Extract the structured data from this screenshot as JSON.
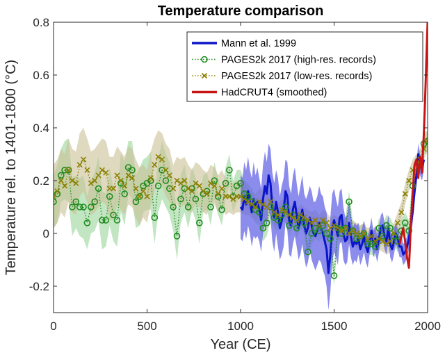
{
  "chart_data": {
    "type": "line",
    "title": "Temperature comparison",
    "xlabel": "Year (CE)",
    "ylabel": "Temperature rel. to 1401-1800 (°C)",
    "xlim": [
      0,
      2000
    ],
    "ylim": [
      -0.3,
      0.8
    ],
    "xticks": [
      0,
      500,
      1000,
      1500,
      2000
    ],
    "yticks": [
      -0.2,
      0,
      0.2,
      0.4,
      0.6,
      0.8
    ],
    "xtick_labels": [
      "0",
      "500",
      "1000",
      "1500",
      "2000"
    ],
    "ytick_labels": [
      "-0.2",
      "0",
      "0.2",
      "0.4",
      "0.6",
      "0.8"
    ],
    "grid": false,
    "legend_position": "top-right",
    "colors": {
      "mann": "#0a14c8",
      "mann_band": "#6466e6",
      "pages_high": "#1e8c1e",
      "pages_high_band": "#8fd08f",
      "pages_low": "#8c8000",
      "pages_low_band": "#c8c094",
      "hadcrut": "#c81414"
    },
    "series": [
      {
        "name": "Mann et al. 1999",
        "key": "mann",
        "style": "solid",
        "x": [
          1000,
          1010,
          1020,
          1030,
          1040,
          1050,
          1060,
          1070,
          1080,
          1090,
          1100,
          1110,
          1120,
          1130,
          1140,
          1150,
          1160,
          1170,
          1180,
          1190,
          1200,
          1210,
          1220,
          1230,
          1240,
          1250,
          1260,
          1270,
          1280,
          1290,
          1300,
          1310,
          1320,
          1330,
          1340,
          1350,
          1360,
          1370,
          1380,
          1390,
          1400,
          1410,
          1420,
          1430,
          1440,
          1450,
          1460,
          1470,
          1480,
          1490,
          1500,
          1510,
          1520,
          1530,
          1540,
          1550,
          1560,
          1570,
          1580,
          1590,
          1600,
          1610,
          1620,
          1630,
          1640,
          1650,
          1660,
          1670,
          1680,
          1690,
          1700,
          1710,
          1720,
          1730,
          1740,
          1750,
          1760,
          1770,
          1780,
          1790,
          1800,
          1810,
          1820,
          1830,
          1840,
          1850,
          1860,
          1870,
          1880,
          1890,
          1900,
          1910,
          1920,
          1930,
          1940,
          1950,
          1960,
          1970,
          1980
        ],
        "y": [
          0.1,
          0.09,
          0.14,
          0.11,
          0.16,
          0.12,
          0.08,
          0.13,
          0.1,
          0.12,
          0.09,
          0.05,
          0.13,
          0.18,
          0.15,
          0.22,
          0.19,
          0.1,
          0.06,
          0.12,
          0.08,
          0.02,
          0.05,
          0.08,
          0.16,
          0.14,
          0.05,
          0.03,
          0.09,
          0.12,
          0.07,
          0.02,
          0.05,
          0.09,
          0.03,
          0.0,
          0.02,
          0.06,
          0.03,
          0.0,
          -0.01,
          0.01,
          0.04,
          0.02,
          0.0,
          -0.03,
          -0.06,
          -0.15,
          -0.08,
          0.02,
          0.05,
          0.02,
          -0.01,
          0.06,
          0.07,
          0.0,
          -0.03,
          -0.02,
          0.04,
          -0.01,
          -0.05,
          -0.03,
          -0.04,
          -0.02,
          -0.06,
          -0.04,
          -0.01,
          -0.05,
          -0.07,
          -0.03,
          0.01,
          -0.04,
          -0.02,
          -0.06,
          -0.02,
          0.02,
          0.03,
          -0.01,
          -0.03,
          0.02,
          -0.04,
          -0.06,
          -0.03,
          0.0,
          -0.02,
          -0.05,
          -0.05,
          -0.08,
          -0.07,
          -0.05,
          -0.02,
          0.03,
          0.08,
          0.16,
          0.22,
          0.3,
          0.26,
          0.24,
          0.28
        ],
        "band": [
          0.12,
          0.12,
          0.13,
          0.13,
          0.13,
          0.12,
          0.13,
          0.14,
          0.12,
          0.13,
          0.12,
          0.12,
          0.13,
          0.13,
          0.12,
          0.12,
          0.13,
          0.13,
          0.13,
          0.12,
          0.13,
          0.12,
          0.13,
          0.13,
          0.12,
          0.13,
          0.13,
          0.12,
          0.13,
          0.13,
          0.12,
          0.12,
          0.13,
          0.13,
          0.12,
          0.13,
          0.13,
          0.12,
          0.13,
          0.12,
          0.13,
          0.13,
          0.14,
          0.13,
          0.14,
          0.13,
          0.14,
          0.14,
          0.14,
          0.13,
          0.12,
          0.11,
          0.11,
          0.1,
          0.1,
          0.1,
          0.09,
          0.09,
          0.08,
          0.08,
          0.07,
          0.07,
          0.07,
          0.06,
          0.06,
          0.06,
          0.06,
          0.06,
          0.06,
          0.05,
          0.05,
          0.05,
          0.05,
          0.05,
          0.05,
          0.05,
          0.05,
          0.05,
          0.05,
          0.05,
          0.05,
          0.05,
          0.05,
          0.04,
          0.04,
          0.04,
          0.04,
          0.04,
          0.04,
          0.04,
          0.04,
          0.04,
          0.04,
          0.04,
          0.04,
          0.04,
          0.04,
          0.04,
          0.04
        ]
      },
      {
        "name": "PAGES2k 2017 (high-res. records)",
        "key": "pages_high",
        "style": "dotted-circle",
        "x": [
          0,
          20,
          40,
          60,
          80,
          100,
          120,
          140,
          160,
          180,
          200,
          220,
          240,
          260,
          280,
          300,
          320,
          340,
          360,
          380,
          400,
          420,
          440,
          460,
          480,
          500,
          520,
          540,
          560,
          580,
          600,
          620,
          640,
          660,
          680,
          700,
          720,
          740,
          760,
          780,
          800,
          820,
          840,
          860,
          880,
          900,
          920,
          940,
          960,
          980,
          1000,
          1020,
          1040,
          1060,
          1080,
          1100,
          1120,
          1140,
          1160,
          1180,
          1200,
          1220,
          1240,
          1260,
          1280,
          1300,
          1320,
          1340,
          1360,
          1380,
          1400,
          1420,
          1440,
          1460,
          1480,
          1500,
          1520,
          1540,
          1560,
          1580,
          1600,
          1620,
          1640,
          1660,
          1680,
          1700,
          1720,
          1740,
          1760,
          1780,
          1800,
          1820,
          1840,
          1860,
          1880,
          1900,
          1920,
          1940,
          1960,
          1980,
          2000
        ],
        "y": [
          0.12,
          0.15,
          0.22,
          0.24,
          0.24,
          0.1,
          0.12,
          0.1,
          0.1,
          0.04,
          0.1,
          0.12,
          0.17,
          0.05,
          0.05,
          0.14,
          0.07,
          0.05,
          0.19,
          0.15,
          0.25,
          0.24,
          0.12,
          0.14,
          0.18,
          0.19,
          0.2,
          0.06,
          0.18,
          0.24,
          0.2,
          0.17,
          0.1,
          -0.01,
          0.13,
          0.17,
          0.1,
          0.17,
          0.13,
          0.04,
          0.15,
          0.16,
          0.1,
          0.2,
          0.14,
          0.09,
          0.19,
          0.24,
          0.14,
          0.18,
          0.19,
          0.15,
          0.14,
          0.12,
          0.09,
          0.08,
          0.02,
          0.04,
          0.1,
          0.06,
          0.05,
          0.07,
          0.1,
          0.03,
          0.07,
          0.02,
          0.06,
          0.04,
          -0.07,
          0.0,
          0.02,
          0.01,
          0.03,
          0.0,
          -0.02,
          -0.16,
          0.02,
          0.0,
          0.02,
          0.12,
          0.01,
          -0.02,
          -0.01,
          0.0,
          -0.04,
          -0.04,
          -0.05,
          0.02,
          -0.01,
          0.03,
          0.02,
          -0.01,
          -0.03,
          0.01,
          0.04,
          0.01,
          0.18,
          0.25,
          0.26,
          0.34,
          0.35
        ],
        "band": [
          0.1,
          0.11,
          0.1,
          0.11,
          0.12,
          0.11,
          0.1,
          0.11,
          0.12,
          0.1,
          0.1,
          0.11,
          0.12,
          0.11,
          0.1,
          0.11,
          0.1,
          0.1,
          0.11,
          0.12,
          0.1,
          0.11,
          0.1,
          0.11,
          0.1,
          0.1,
          0.11,
          0.1,
          0.1,
          0.11,
          0.1,
          0.1,
          0.09,
          0.09,
          0.09,
          0.09,
          0.08,
          0.08,
          0.08,
          0.08,
          0.07,
          0.07,
          0.07,
          0.07,
          0.07,
          0.06,
          0.06,
          0.06,
          0.06,
          0.06,
          0.05,
          0.05,
          0.05,
          0.05,
          0.05,
          0.05,
          0.05,
          0.05,
          0.05,
          0.04,
          0.04,
          0.04,
          0.04,
          0.04,
          0.04,
          0.04,
          0.04,
          0.04,
          0.04,
          0.04,
          0.04,
          0.04,
          0.04,
          0.04,
          0.04,
          0.04,
          0.04,
          0.04,
          0.04,
          0.04,
          0.04,
          0.04,
          0.04,
          0.04,
          0.04,
          0.04,
          0.04,
          0.04,
          0.04,
          0.04,
          0.04,
          0.04,
          0.04,
          0.04,
          0.04,
          0.04,
          0.04,
          0.04,
          0.04,
          0.04,
          0.04
        ]
      },
      {
        "name": "PAGES2k 2017 (low-res. records)",
        "key": "pages_low",
        "style": "dotted-x",
        "x": [
          0,
          20,
          40,
          60,
          80,
          100,
          120,
          140,
          160,
          180,
          200,
          220,
          240,
          260,
          280,
          300,
          320,
          340,
          360,
          380,
          400,
          420,
          440,
          460,
          480,
          500,
          520,
          540,
          560,
          580,
          600,
          620,
          640,
          660,
          680,
          700,
          720,
          740,
          760,
          780,
          800,
          820,
          840,
          860,
          880,
          900,
          920,
          940,
          960,
          980,
          1000,
          1020,
          1040,
          1060,
          1080,
          1100,
          1120,
          1140,
          1160,
          1180,
          1200,
          1220,
          1240,
          1260,
          1280,
          1300,
          1320,
          1340,
          1360,
          1380,
          1400,
          1420,
          1440,
          1460,
          1480,
          1500,
          1520,
          1540,
          1560,
          1580,
          1600,
          1620,
          1640,
          1660,
          1680,
          1700,
          1720,
          1740,
          1760,
          1780,
          1800,
          1820,
          1840,
          1860,
          1880,
          1900,
          1920,
          1940,
          1960,
          1980,
          2000
        ],
        "y": [
          0.14,
          0.16,
          0.2,
          0.18,
          0.24,
          0.2,
          0.19,
          0.26,
          0.28,
          0.24,
          0.19,
          0.2,
          0.22,
          0.24,
          0.23,
          0.17,
          0.17,
          0.22,
          0.2,
          0.18,
          0.22,
          0.21,
          0.17,
          0.14,
          0.16,
          0.14,
          0.21,
          0.26,
          0.29,
          0.28,
          0.24,
          0.22,
          0.17,
          0.2,
          0.19,
          0.2,
          0.17,
          0.16,
          0.19,
          0.18,
          0.16,
          0.15,
          0.19,
          0.18,
          0.15,
          0.17,
          0.14,
          0.14,
          0.13,
          0.14,
          0.14,
          0.13,
          0.12,
          0.11,
          0.1,
          0.12,
          0.11,
          0.1,
          0.12,
          0.08,
          0.07,
          0.09,
          0.08,
          0.07,
          0.06,
          0.05,
          0.07,
          0.06,
          0.05,
          0.04,
          0.05,
          0.03,
          0.05,
          0.04,
          0.02,
          0.03,
          0.02,
          0.01,
          0.02,
          0.0,
          0.01,
          0.0,
          -0.01,
          0.0,
          -0.02,
          -0.01,
          -0.03,
          -0.02,
          -0.03,
          -0.04,
          -0.03,
          0.0,
          0.04,
          0.08,
          0.15,
          0.2,
          0.24,
          0.26,
          0.28,
          0.32,
          0.35
        ],
        "band": [
          0.12,
          0.12,
          0.12,
          0.12,
          0.12,
          0.12,
          0.12,
          0.12,
          0.12,
          0.12,
          0.12,
          0.12,
          0.12,
          0.12,
          0.12,
          0.12,
          0.12,
          0.11,
          0.11,
          0.11,
          0.11,
          0.11,
          0.11,
          0.11,
          0.1,
          0.1,
          0.1,
          0.1,
          0.1,
          0.1,
          0.1,
          0.1,
          0.09,
          0.09,
          0.09,
          0.09,
          0.09,
          0.08,
          0.08,
          0.08,
          0.08,
          0.08,
          0.07,
          0.07,
          0.07,
          0.07,
          0.07,
          0.06,
          0.06,
          0.06,
          0.06,
          0.06,
          0.05,
          0.05,
          0.05,
          0.05,
          0.05,
          0.05,
          0.05,
          0.05,
          0.04,
          0.04,
          0.04,
          0.04,
          0.04,
          0.04,
          0.04,
          0.04,
          0.04,
          0.04,
          0.04,
          0.04,
          0.04,
          0.04,
          0.04,
          0.04,
          0.04,
          0.04,
          0.04,
          0.04,
          0.04,
          0.04,
          0.04,
          0.04,
          0.04,
          0.04,
          0.04,
          0.04,
          0.04,
          0.04,
          0.04,
          0.04,
          0.04,
          0.04,
          0.04,
          0.04,
          0.04,
          0.04,
          0.04,
          0.04,
          0.04
        ]
      },
      {
        "name": "HadCRUT4 (smoothed)",
        "key": "hadcrut",
        "style": "solid",
        "x": [
          1850,
          1860,
          1870,
          1880,
          1890,
          1900,
          1905,
          1910,
          1920,
          1930,
          1940,
          1950,
          1960,
          1970,
          1975,
          1980,
          1985,
          1990,
          1995,
          2000
        ],
        "y": [
          -0.04,
          -0.01,
          0.02,
          -0.03,
          -0.09,
          -0.13,
          -0.06,
          0.03,
          0.15,
          0.26,
          0.28,
          0.21,
          0.29,
          0.23,
          0.31,
          0.38,
          0.48,
          0.58,
          0.7,
          0.8
        ]
      }
    ]
  }
}
